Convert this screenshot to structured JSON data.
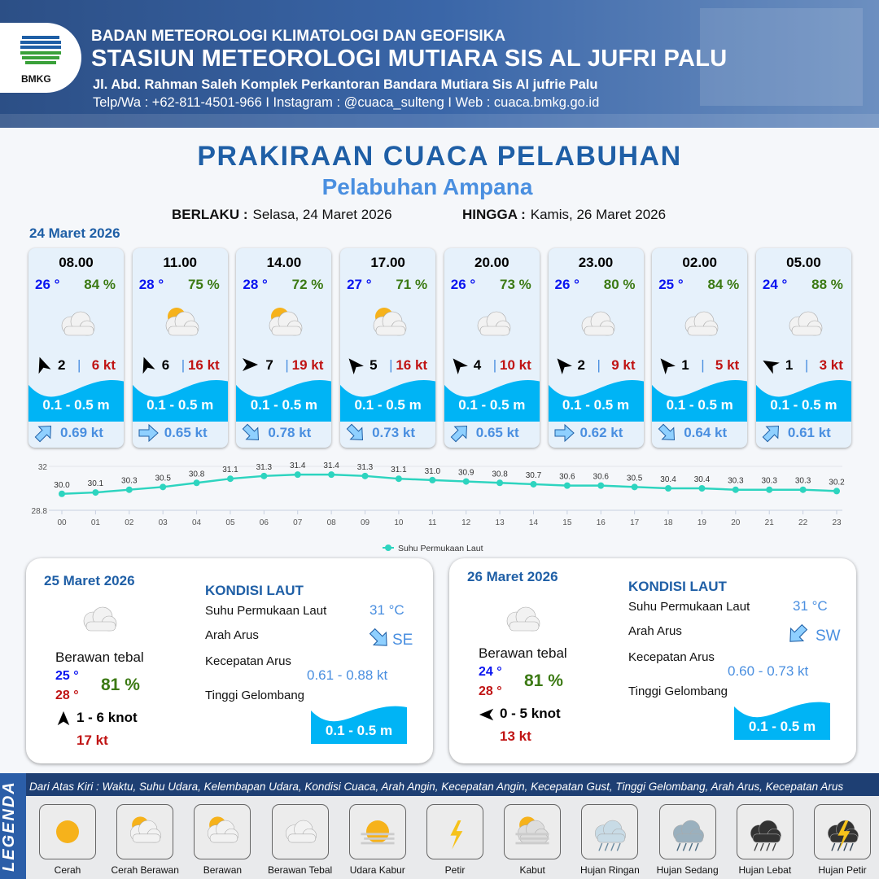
{
  "header": {
    "org": "BADAN METEOROLOGI KLIMATOLOGI DAN GEOFISIKA",
    "station": "STASIUN METEOROLOGI MUTIARA SIS AL JUFRI PALU",
    "address": "Jl. Abd. Rahman Saleh Komplek Perkantoran Bandara Mutiara Sis Al jufrie Palu",
    "contact": "Telp/Wa : +62-811-4501-966  I  Instagram : @cuaca_sulteng  I  Web : cuaca.bmkg.go.id",
    "logo_text": "BMKG"
  },
  "title": "PRAKIRAAN CUACA PELABUHAN",
  "subtitle": "Pelabuhan Ampana",
  "validity": {
    "from_label": "BERLAKU :",
    "from": "Selasa, 24 Maret 2026",
    "to_label": "HINGGA :",
    "to": "Kamis, 26 Maret 2026"
  },
  "day1_label": "24 Maret 2026",
  "colors": {
    "temp": "#0a14f0",
    "humidity": "#3c7a14",
    "gust": "#c01414",
    "wave": "#00b4f5",
    "current": "#4a8fe0",
    "title": "#1f5fa6",
    "line": "#2dd4bf"
  },
  "cards": [
    {
      "time": "08.00",
      "temp": "26 °",
      "hum": "84 %",
      "icon": "berawan-tebal",
      "wind_arrow_deg": -20,
      "wind": "2",
      "gust": "6 kt",
      "wave": "0.1 - 0.5 m",
      "cur_arrow_deg": 45,
      "cur": "0.69 kt"
    },
    {
      "time": "11.00",
      "temp": "28 °",
      "hum": "75 %",
      "icon": "berawan",
      "wind_arrow_deg": -20,
      "wind": "6",
      "gust": "16 kt",
      "wave": "0.1 - 0.5 m",
      "cur_arrow_deg": 90,
      "cur": "0.65 kt"
    },
    {
      "time": "14.00",
      "temp": "28 °",
      "hum": "72 %",
      "icon": "berawan",
      "wind_arrow_deg": 90,
      "wind": "7",
      "gust": "19 kt",
      "wave": "0.1 - 0.5 m",
      "cur_arrow_deg": 135,
      "cur": "0.78 kt"
    },
    {
      "time": "17.00",
      "temp": "27 °",
      "hum": "71 %",
      "icon": "berawan",
      "wind_arrow_deg": -40,
      "wind": "5",
      "gust": "16 kt",
      "wave": "0.1 - 0.5 m",
      "cur_arrow_deg": 135,
      "cur": "0.73 kt"
    },
    {
      "time": "20.00",
      "temp": "26 °",
      "hum": "73 %",
      "icon": "berawan-tebal",
      "wind_arrow_deg": -40,
      "wind": "4",
      "gust": "10 kt",
      "wave": "0.1 - 0.5 m",
      "cur_arrow_deg": 45,
      "cur": "0.65 kt"
    },
    {
      "time": "23.00",
      "temp": "26 °",
      "hum": "80 %",
      "icon": "berawan-tebal",
      "wind_arrow_deg": -40,
      "wind": "2",
      "gust": "9 kt",
      "wave": "0.1 - 0.5 m",
      "cur_arrow_deg": 90,
      "cur": "0.62 kt"
    },
    {
      "time": "02.00",
      "temp": "25 °",
      "hum": "84 %",
      "icon": "berawan-tebal",
      "wind_arrow_deg": -40,
      "wind": "1",
      "gust": "5 kt",
      "wave": "0.1 - 0.5 m",
      "cur_arrow_deg": 135,
      "cur": "0.64 kt"
    },
    {
      "time": "05.00",
      "temp": "24 °",
      "hum": "88 %",
      "icon": "berawan-tebal",
      "wind_arrow_deg": -60,
      "wind": "1",
      "gust": "3 kt",
      "wave": "0.1 - 0.5 m",
      "cur_arrow_deg": 45,
      "cur": "0.61 kt"
    }
  ],
  "chart_data": {
    "type": "line",
    "series": [
      {
        "name": "Suhu Permukaan Laut",
        "values": [
          30.0,
          30.1,
          30.3,
          30.5,
          30.8,
          31.1,
          31.3,
          31.4,
          31.4,
          31.3,
          31.1,
          31.0,
          30.9,
          30.8,
          30.7,
          30.6,
          30.6,
          30.5,
          30.4,
          30.4,
          30.3,
          30.3,
          30.3,
          30.2
        ]
      }
    ],
    "categories": [
      "00",
      "01",
      "02",
      "03",
      "04",
      "05",
      "06",
      "07",
      "08",
      "09",
      "10",
      "11",
      "12",
      "13",
      "14",
      "15",
      "16",
      "17",
      "18",
      "19",
      "20",
      "21",
      "22",
      "23"
    ],
    "ylim": [
      28.8,
      32
    ],
    "yticks": [
      "32",
      "28.8"
    ],
    "legend": "bottom",
    "grid": true
  },
  "panels": [
    {
      "date": "25 Maret 2026",
      "cond": "Berawan tebal",
      "tmin": "25 °",
      "tmax": "28 °",
      "hum": "81 %",
      "wind_arrow_deg": 0,
      "wind": "1 - 6 knot",
      "gust": "17 kt",
      "kondisi": "KONDISI LAUT",
      "sst_label": "Suhu Permukaan Laut",
      "sst": "31 °C",
      "dir_label": "Arah Arus",
      "dir": "SE",
      "dir_arrow_deg": 135,
      "spd_label": "Kecepatan Arus",
      "spd": "0.61  - 0.88 kt",
      "wave_label": "Tinggi Gelombang",
      "wave": "0.1 - 0.5 m"
    },
    {
      "date": "26 Maret 2026",
      "cond": "Berawan tebal",
      "tmin": "24 °",
      "tmax": "28 °",
      "hum": "81 %",
      "wind_arrow_deg": -90,
      "wind": "0  - 5 knot",
      "gust": "13 kt",
      "kondisi": "KONDISI LAUT",
      "sst_label": "Suhu Permukaan Laut",
      "sst": "31 °C",
      "dir_label": "Arah Arus",
      "dir": "SW",
      "dir_arrow_deg": 225,
      "spd_label": "Kecepatan Arus",
      "spd": "0.60  - 0.73 kt",
      "wave_label": "Tinggi Gelombang",
      "wave": "0.1 - 0.5 m"
    }
  ],
  "legend": {
    "title": "LEGENDA",
    "desc": "Dari Atas Kiri : Waktu, Suhu Udara, Kelembapan Udara, Kondisi Cuaca, Arah Angin, Kecepatan Angin, Kecepatan Gust, Tinggi Gelombang, Arah Arus, Kecepatan Arus",
    "items": [
      {
        "label": "Cerah",
        "icon": "cerah"
      },
      {
        "label": "Cerah Berawan",
        "icon": "cerah-berawan"
      },
      {
        "label": "Berawan",
        "icon": "berawan"
      },
      {
        "label": "Berawan Tebal",
        "icon": "berawan-tebal"
      },
      {
        "label": "Udara Kabur",
        "icon": "udara-kabur"
      },
      {
        "label": "Petir",
        "icon": "petir"
      },
      {
        "label": "Kabut",
        "icon": "kabut"
      },
      {
        "label": "Hujan Ringan",
        "icon": "hujan-ringan"
      },
      {
        "label": "Hujan Sedang",
        "icon": "hujan-sedang"
      },
      {
        "label": "Hujan Lebat",
        "icon": "hujan-lebat"
      },
      {
        "label": "Hujan Petir",
        "icon": "hujan-petir"
      }
    ]
  }
}
